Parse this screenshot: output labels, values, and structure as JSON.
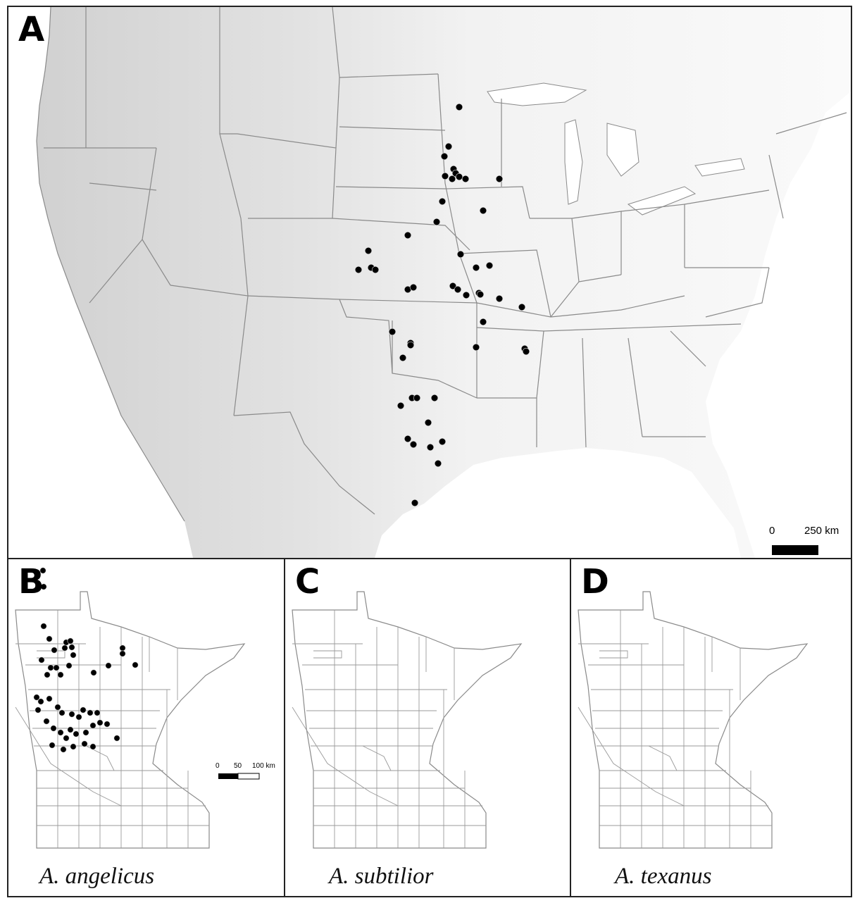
{
  "figure": {
    "panels": [
      {
        "id": "A",
        "letter": "A",
        "scale_bar": {
          "zero": "0",
          "distance": "250 km"
        }
      },
      {
        "id": "B",
        "letter": "B",
        "species": "A. angelicus",
        "scale_bar": {
          "zero": "0",
          "mid": "50",
          "distance": "100 km"
        }
      },
      {
        "id": "C",
        "letter": "C",
        "species": "A. subtilior"
      },
      {
        "id": "D",
        "letter": "D",
        "species": "A. texanus"
      }
    ]
  },
  "colors": {
    "point": "#000000",
    "border": "#8a8a8a",
    "water": "#ffffff",
    "relief": "#dcdcdc"
  }
}
